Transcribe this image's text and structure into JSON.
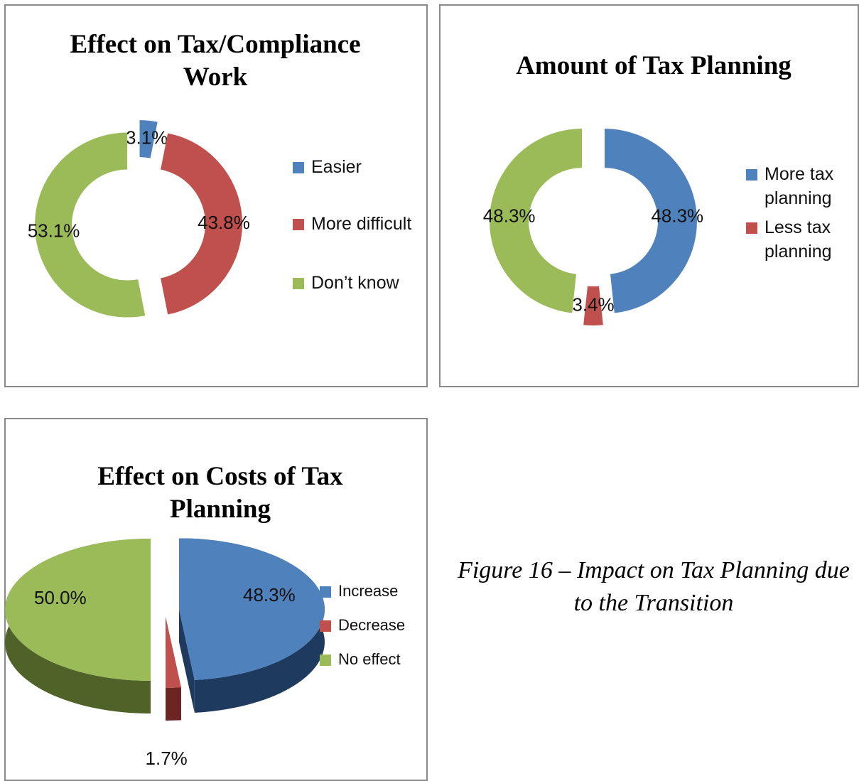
{
  "chart_data": [
    {
      "type": "donut",
      "title": "Effect on Tax/Compliance Work",
      "categories": [
        "Easier",
        "More difficult",
        "Don’t know"
      ],
      "values": [
        3.1,
        43.8,
        53.1
      ],
      "value_labels": [
        "3.1%",
        "43.8%",
        "53.1%"
      ],
      "colors": [
        "#4f81bd",
        "#c0504d",
        "#9bbb59"
      ],
      "legend": "right"
    },
    {
      "type": "donut",
      "title": "Amount of Tax Planning",
      "categories": [
        "More tax planning",
        "Less tax planning",
        null
      ],
      "values": [
        48.3,
        3.4,
        48.3
      ],
      "value_labels": [
        "48.3%",
        "3.4%",
        "48.3%"
      ],
      "colors": [
        "#4f81bd",
        "#c0504d",
        "#9bbb59"
      ],
      "legend": "right"
    },
    {
      "type": "pie3d",
      "title": "Effect on Costs of Tax Planning",
      "categories": [
        "Increase",
        "Decrease",
        "No effect"
      ],
      "values": [
        48.3,
        1.7,
        50.0
      ],
      "value_labels": [
        "48.3%",
        "1.7%",
        "50.0%"
      ],
      "colors": [
        "#4f81bd",
        "#c0504d",
        "#9bbb59"
      ],
      "legend": "right"
    }
  ],
  "figure_caption": "Figure 16 – Impact on Tax Planning due to the Transition"
}
